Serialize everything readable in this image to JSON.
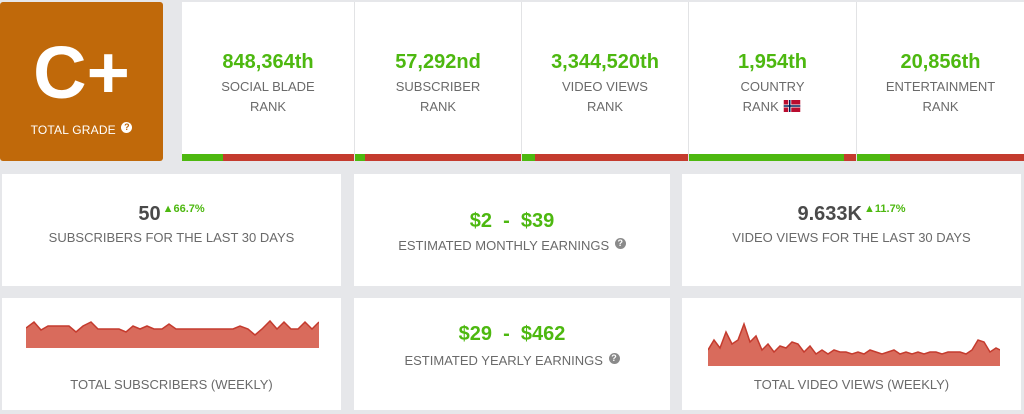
{
  "grade": {
    "letter": "C+",
    "label": "TOTAL GRADE",
    "help_icon": "question-circle-icon"
  },
  "ranks": [
    {
      "value": "848,364th",
      "line1": "SOCIAL BLADE",
      "line2": "RANK",
      "progress": 0.24
    },
    {
      "value": "57,292nd",
      "line1": "SUBSCRIBER",
      "line2": "RANK",
      "progress": 0.06
    },
    {
      "value": "3,344,520th",
      "line1": "VIDEO VIEWS",
      "line2": "RANK",
      "progress": 0.08
    },
    {
      "value": "1,954th",
      "line1": "COUNTRY",
      "line2": "RANK",
      "progress": 0.93,
      "flag": "norway-flag-icon"
    },
    {
      "value": "20,856th",
      "line1": "ENTERTAINMENT",
      "line2": "RANK",
      "progress": 0.2
    }
  ],
  "subscribers_30": {
    "value": "50",
    "delta": "66.7%",
    "label": "SUBSCRIBERS FOR THE LAST 30 DAYS"
  },
  "monthly_earnings": {
    "low": "$2",
    "sep": "-",
    "high": "$39",
    "label": "ESTIMATED MONTHLY EARNINGS"
  },
  "views_30": {
    "value": "9.633K",
    "delta": "11.7%",
    "label": "VIDEO VIEWS FOR THE LAST 30 DAYS"
  },
  "subs_weekly": {
    "label": "TOTAL SUBSCRIBERS (WEEKLY)"
  },
  "yearly_earnings": {
    "low": "$29",
    "sep": "-",
    "high": "$462",
    "label": "ESTIMATED YEARLY EARNINGS"
  },
  "views_weekly": {
    "label": "TOTAL VIDEO VIEWS (WEEKLY)"
  },
  "colors": {
    "grade_bg": "#c0690a",
    "green": "#4db810",
    "red": "#c43b2e",
    "spark": "#d96b5c"
  }
}
